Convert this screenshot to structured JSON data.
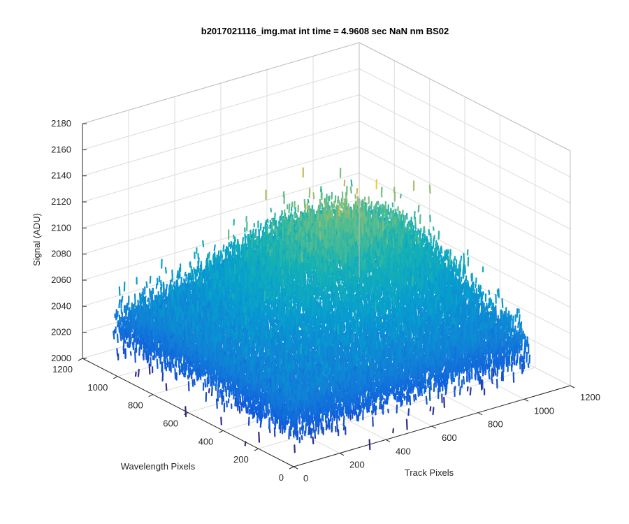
{
  "chart_data": {
    "type": "surface",
    "title": "b2017021116_img.mat int time = 4.9608 sec  NaN nm BS02",
    "xlabel": "Track Pixels",
    "ylabel": "Wavelength Pixels",
    "zlabel": "Signal (ADU)",
    "xlim": [
      0,
      1200
    ],
    "ylim": [
      0,
      1200
    ],
    "zlim": [
      2000,
      2180
    ],
    "x_ticks": [
      "0",
      "200",
      "400",
      "600",
      "800",
      "1000",
      "1200"
    ],
    "y_ticks": [
      "0",
      "200",
      "400",
      "600",
      "800",
      "1000",
      "1200"
    ],
    "z_ticks": [
      "2000",
      "2020",
      "2040",
      "2060",
      "2080",
      "2100",
      "2120",
      "2140",
      "2160",
      "2180"
    ],
    "data_extent": {
      "x": [
        0,
        1024
      ],
      "y": [
        0,
        1024
      ]
    },
    "baseline_signal": 2040,
    "peak_signal": 2110,
    "noise_range_adu": [
      2000,
      2150
    ],
    "grid": true,
    "colormap": "parula",
    "colors": {
      "low": "#0a5fd8",
      "mid": "#22a3c4",
      "high": "#e6c33c"
    }
  }
}
